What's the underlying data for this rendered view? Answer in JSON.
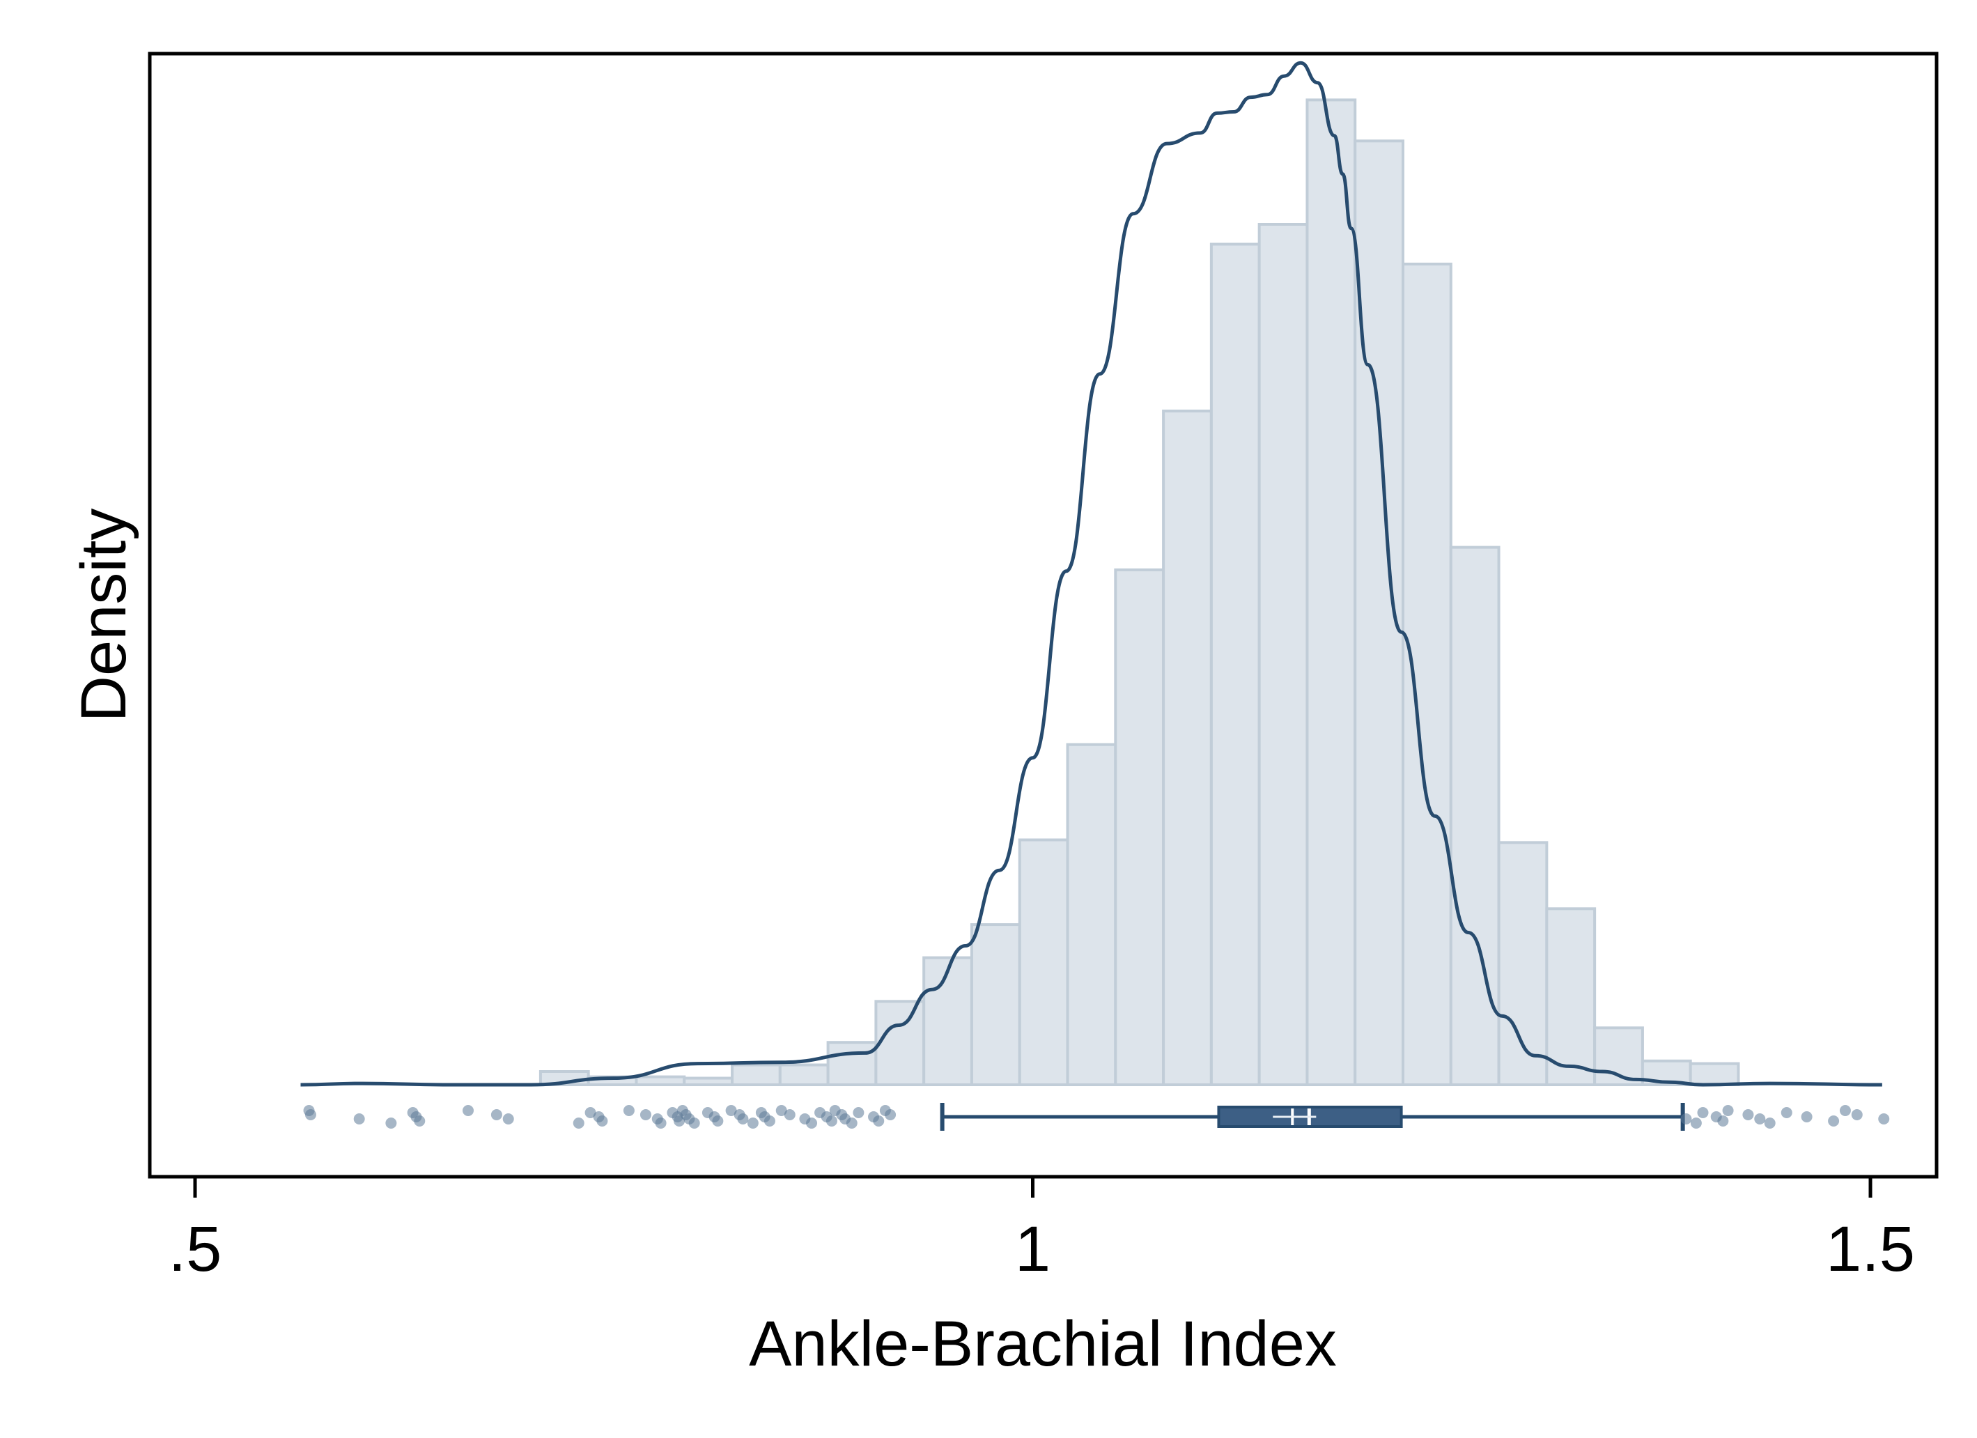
{
  "chart_data": {
    "type": "histogram",
    "xlabel": "Ankle-Brachial Index",
    "ylabel": "Density",
    "xlim": [
      0.47,
      1.54
    ],
    "x_ticks": [
      {
        "value": 0.5,
        "label": ".5"
      },
      {
        "value": 1.0,
        "label": "1"
      },
      {
        "value": 1.5,
        "label": "1.5"
      }
    ],
    "y_ticks": [],
    "grid": false,
    "legend": "none",
    "colors": {
      "bar_fill": "#dde4eb",
      "bar_stroke": "#c1cdd8",
      "line": "#274b6e",
      "box_fill": "#3d5f85",
      "point": "#5d7a97"
    },
    "histogram": {
      "bin_width": 0.0286,
      "bins": [
        {
          "x0": 0.7062,
          "density": 0.1
        },
        {
          "x0": 0.7348,
          "density": 0.06
        },
        {
          "x0": 0.7634,
          "density": 0.06
        },
        {
          "x0": 0.792,
          "density": 0.05
        },
        {
          "x0": 0.8206,
          "density": 0.15
        },
        {
          "x0": 0.8492,
          "density": 0.15
        },
        {
          "x0": 0.8778,
          "density": 0.32
        },
        {
          "x0": 0.9064,
          "density": 0.63
        },
        {
          "x0": 0.935,
          "density": 0.96
        },
        {
          "x0": 0.9636,
          "density": 1.21
        },
        {
          "x0": 0.9922,
          "density": 1.85
        },
        {
          "x0": 1.0208,
          "density": 2.57
        },
        {
          "x0": 1.0494,
          "density": 3.89
        },
        {
          "x0": 1.078,
          "density": 5.09
        },
        {
          "x0": 1.1066,
          "density": 6.35
        },
        {
          "x0": 1.1352,
          "density": 6.5
        },
        {
          "x0": 1.1638,
          "density": 7.44
        },
        {
          "x0": 1.1924,
          "density": 7.13
        },
        {
          "x0": 1.221,
          "density": 6.2
        },
        {
          "x0": 1.2496,
          "density": 4.06
        },
        {
          "x0": 1.2782,
          "density": 1.83
        },
        {
          "x0": 1.3068,
          "density": 1.33
        },
        {
          "x0": 1.3354,
          "density": 0.43
        },
        {
          "x0": 1.364,
          "density": 0.18
        },
        {
          "x0": 1.3926,
          "density": 0.16
        }
      ]
    },
    "density_curve": {
      "x": [
        0.563,
        0.6,
        0.65,
        0.7,
        0.75,
        0.8,
        0.85,
        0.9,
        0.92,
        0.94,
        0.96,
        0.98,
        1.0,
        1.02,
        1.04,
        1.06,
        1.08,
        1.1,
        1.11,
        1.12,
        1.13,
        1.14,
        1.15,
        1.16,
        1.17,
        1.18,
        1.185,
        1.19,
        1.2,
        1.22,
        1.24,
        1.26,
        1.28,
        1.3,
        1.32,
        1.34,
        1.36,
        1.38,
        1.4,
        1.44,
        1.507
      ],
      "y": [
        0.0,
        0.01,
        0.0,
        0.0,
        0.05,
        0.16,
        0.17,
        0.24,
        0.45,
        0.72,
        1.05,
        1.62,
        2.47,
        3.88,
        5.37,
        6.58,
        7.11,
        7.19,
        7.34,
        7.35,
        7.46,
        7.48,
        7.62,
        7.72,
        7.57,
        7.17,
        6.88,
        6.47,
        5.44,
        3.42,
        2.03,
        1.15,
        0.52,
        0.22,
        0.14,
        0.1,
        0.04,
        0.02,
        0.0,
        0.01,
        0.0
      ]
    },
    "box_plot": {
      "lower_whisker": 0.946,
      "q1": 1.111,
      "median": 1.165,
      "mean": 1.155,
      "q3": 1.22,
      "upper_whisker": 1.388
    },
    "outliers": [
      0.568,
      0.569,
      0.598,
      0.617,
      0.63,
      0.632,
      0.634,
      0.663,
      0.68,
      0.687,
      0.729,
      0.736,
      0.741,
      0.743,
      0.759,
      0.769,
      0.776,
      0.778,
      0.785,
      0.788,
      0.789,
      0.791,
      0.793,
      0.795,
      0.798,
      0.806,
      0.81,
      0.812,
      0.82,
      0.825,
      0.827,
      0.833,
      0.838,
      0.84,
      0.843,
      0.85,
      0.855,
      0.864,
      0.868,
      0.873,
      0.877,
      0.88,
      0.882,
      0.886,
      0.888,
      0.892,
      0.896,
      0.905,
      0.908,
      0.912,
      0.915,
      1.39,
      1.396,
      1.4,
      1.408,
      1.412,
      1.415,
      1.427,
      1.434,
      1.44,
      1.45,
      1.462,
      1.478,
      1.485,
      1.492,
      1.508
    ]
  }
}
